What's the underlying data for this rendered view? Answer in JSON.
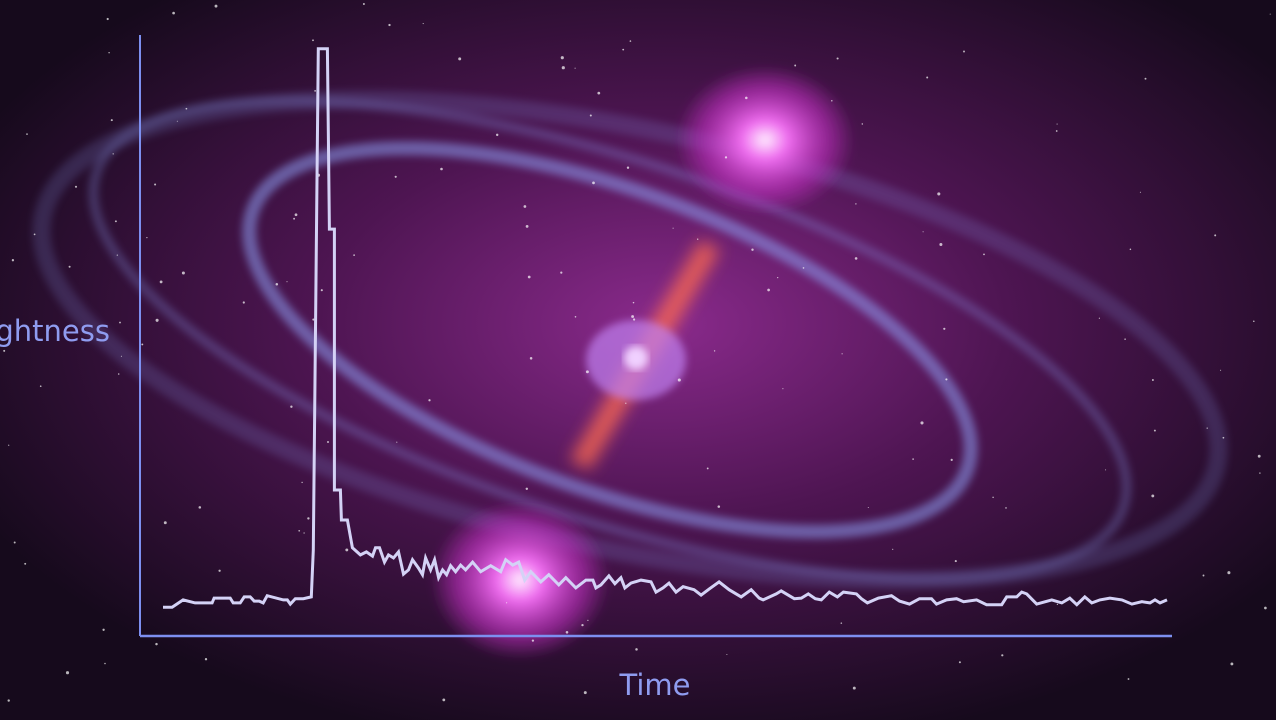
{
  "chart_data": {
    "type": "line",
    "title": "",
    "xlabel": "Time",
    "ylabel": "Brightness",
    "xlim": [
      0,
      103
    ],
    "ylim": [
      0,
      100
    ],
    "grid": false,
    "tick_labels": false,
    "colors": {
      "line": "#d4d2f6",
      "axis": "#7d8ff0",
      "label": "#8f9cf0"
    },
    "series": [
      {
        "x": [
          2.3,
          3.2,
          4.3,
          5.5,
          7.2,
          7.4,
          9.0,
          9.3,
          10.0,
          10.4,
          11.0,
          11.4,
          11.9,
          12.3,
          12.7,
          14.3,
          14.7,
          15.0,
          15.5,
          16.3,
          17.1,
          17.3,
          17.8,
          18.7,
          18.9,
          19.4,
          19.4,
          20.0,
          20.1,
          20.7,
          21.2,
          22.0,
          22.6,
          23.2,
          23.5,
          23.9,
          24.4,
          24.8,
          25.3,
          25.8,
          26.3,
          26.8,
          27.2,
          27.8,
          28.2,
          28.5,
          29.0,
          29.4,
          29.8,
          30.2,
          30.6,
          31.0,
          31.5,
          32.0,
          32.5,
          33.2,
          34.0,
          35.0,
          36.0,
          36.5,
          37.2,
          37.8,
          38.4,
          39.0,
          40.0,
          40.8,
          41.8,
          42.5,
          43.5,
          44.5,
          45.2,
          45.5,
          46.0,
          46.8,
          47.4,
          48.0,
          48.4,
          49.0,
          50.0,
          51.0,
          51.5,
          52.2,
          52.8,
          53.5,
          54.2,
          55.3,
          56.0,
          56.8,
          57.8,
          58.8,
          60.0,
          61.0,
          61.8,
          62.2,
          63.5,
          64.0,
          65.3,
          66.0,
          66.7,
          67.4,
          68.0,
          68.8,
          69.6,
          70.2,
          71.5,
          72.0,
          72.6,
          73.7,
          75.0,
          75.8,
          76.8,
          77.8,
          79.0,
          79.5,
          80.5,
          81.5,
          82.2,
          83.5,
          84.5,
          86.0,
          86.5,
          87.5,
          88.0,
          88.5,
          89.5,
          91.0,
          92.0,
          92.8,
          93.5,
          94.3,
          95.0,
          95.8,
          96.8,
          98.0,
          99.0,
          100.0,
          100.8,
          101.3,
          101.8,
          102.5
        ],
        "y": [
          4.8,
          4.8,
          6.0,
          5.5,
          5.5,
          6.3,
          6.3,
          5.5,
          5.5,
          6.5,
          6.5,
          5.8,
          5.8,
          5.5,
          6.7,
          6.0,
          6.0,
          5.3,
          6.2,
          6.2,
          6.5,
          14.3,
          97.7,
          97.7,
          67.7,
          67.7,
          24.3,
          24.3,
          19.3,
          19.3,
          14.7,
          13.5,
          14.0,
          13.3,
          14.7,
          14.7,
          12.3,
          13.5,
          13.0,
          14.0,
          10.3,
          11.0,
          12.7,
          11.3,
          10.2,
          13.0,
          11.0,
          12.7,
          9.7,
          11.0,
          10.2,
          11.7,
          10.7,
          11.8,
          11.0,
          12.3,
          10.7,
          11.7,
          10.7,
          12.7,
          11.8,
          12.3,
          9.3,
          10.7,
          9.0,
          10.2,
          8.5,
          9.7,
          8.0,
          9.3,
          9.3,
          8.0,
          8.5,
          10.0,
          8.7,
          9.7,
          8.0,
          8.8,
          9.3,
          9.0,
          7.3,
          8.0,
          8.8,
          7.3,
          8.2,
          7.7,
          6.8,
          7.8,
          9.0,
          7.7,
          6.5,
          7.7,
          6.3,
          6.0,
          7.0,
          7.5,
          6.2,
          6.3,
          7.0,
          6.2,
          6.0,
          7.3,
          6.5,
          7.3,
          7.0,
          6.2,
          5.5,
          6.3,
          6.7,
          5.8,
          5.3,
          6.2,
          6.2,
          5.3,
          6.0,
          6.2,
          5.7,
          6.0,
          5.2,
          5.2,
          6.5,
          6.5,
          7.3,
          7.0,
          5.3,
          6.0,
          5.5,
          6.3,
          5.2,
          6.5,
          5.5,
          6.0,
          6.3,
          6.0,
          5.3,
          5.7,
          5.5,
          6.0,
          5.5,
          6.0
        ]
      }
    ]
  }
}
